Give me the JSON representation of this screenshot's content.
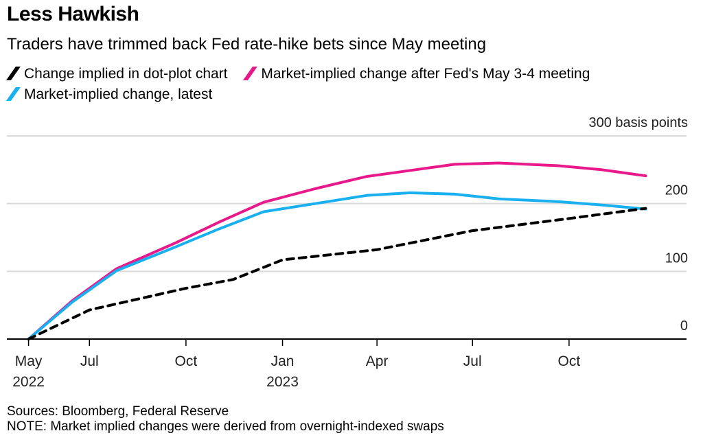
{
  "title": "Less Hawkish",
  "subtitle": "Traders have trimmed back Fed rate-hike bets since May meeting",
  "legend": [
    {
      "label": "Change implied in dot-plot chart",
      "color": "#000000"
    },
    {
      "label": "Market-implied change after Fed's May 3-4 meeting",
      "color": "#e8198b"
    },
    {
      "label": "Market-implied change, latest",
      "color": "#1ab0f0"
    }
  ],
  "footer": {
    "sources": "Sources: Bloomberg, Federal Reserve",
    "note": "NOTE: Market implied changes were derived from overnight-indexed swaps"
  },
  "chart_data": {
    "type": "line",
    "ylabel": "300 basis points",
    "ylim": [
      0,
      300
    ],
    "y_ticks": [
      {
        "value": 0,
        "label": "0"
      },
      {
        "value": 100,
        "label": "100"
      },
      {
        "value": 200,
        "label": "200"
      },
      {
        "value": 300,
        "label": "300 basis points"
      }
    ],
    "x_range": [
      "2022-05-01",
      "2023-12-31"
    ],
    "x_ticks": [
      {
        "date": "2022-05-04",
        "label": "May",
        "sublabel": "2022"
      },
      {
        "date": "2022-07-01",
        "label": "Jul",
        "sublabel": ""
      },
      {
        "date": "2022-10-01",
        "label": "Oct",
        "sublabel": ""
      },
      {
        "date": "2023-01-01",
        "label": "Jan",
        "sublabel": "2023"
      },
      {
        "date": "2023-04-01",
        "label": "Apr",
        "sublabel": ""
      },
      {
        "date": "2023-07-01",
        "label": "Jul",
        "sublabel": ""
      },
      {
        "date": "2023-10-01",
        "label": "Oct",
        "sublabel": ""
      }
    ],
    "series": [
      {
        "name": "Market-implied change after Fed's May 3-4 meeting",
        "color": "#e8198b",
        "style": "solid",
        "points": [
          [
            "2022-05-04",
            0
          ],
          [
            "2022-06-15",
            57
          ],
          [
            "2022-07-27",
            104
          ],
          [
            "2022-09-21",
            142
          ],
          [
            "2022-11-02",
            173
          ],
          [
            "2022-12-14",
            202
          ],
          [
            "2023-02-01",
            222
          ],
          [
            "2023-03-22",
            240
          ],
          [
            "2023-05-03",
            249
          ],
          [
            "2023-06-14",
            258
          ],
          [
            "2023-07-26",
            260
          ],
          [
            "2023-09-20",
            256
          ],
          [
            "2023-11-01",
            250
          ],
          [
            "2023-12-13",
            241
          ]
        ]
      },
      {
        "name": "Market-implied change, latest",
        "color": "#1ab0f0",
        "style": "solid",
        "points": [
          [
            "2022-05-04",
            0
          ],
          [
            "2022-06-15",
            55
          ],
          [
            "2022-07-27",
            101
          ],
          [
            "2022-09-21",
            136
          ],
          [
            "2022-11-02",
            163
          ],
          [
            "2022-12-14",
            188
          ],
          [
            "2023-02-01",
            200
          ],
          [
            "2023-03-22",
            212
          ],
          [
            "2023-05-03",
            216
          ],
          [
            "2023-06-14",
            214
          ],
          [
            "2023-07-26",
            207
          ],
          [
            "2023-09-20",
            203
          ],
          [
            "2023-11-01",
            198
          ],
          [
            "2023-12-13",
            192
          ]
        ]
      },
      {
        "name": "Change implied in dot-plot chart",
        "color": "#000000",
        "style": "dashed",
        "points": [
          [
            "2022-05-04",
            0
          ],
          [
            "2022-07-01",
            43
          ],
          [
            "2022-10-01",
            75
          ],
          [
            "2022-11-15",
            88
          ],
          [
            "2023-01-01",
            117
          ],
          [
            "2023-04-01",
            132
          ],
          [
            "2023-07-01",
            160
          ],
          [
            "2023-10-01",
            178
          ],
          [
            "2023-12-13",
            193
          ]
        ]
      }
    ]
  }
}
